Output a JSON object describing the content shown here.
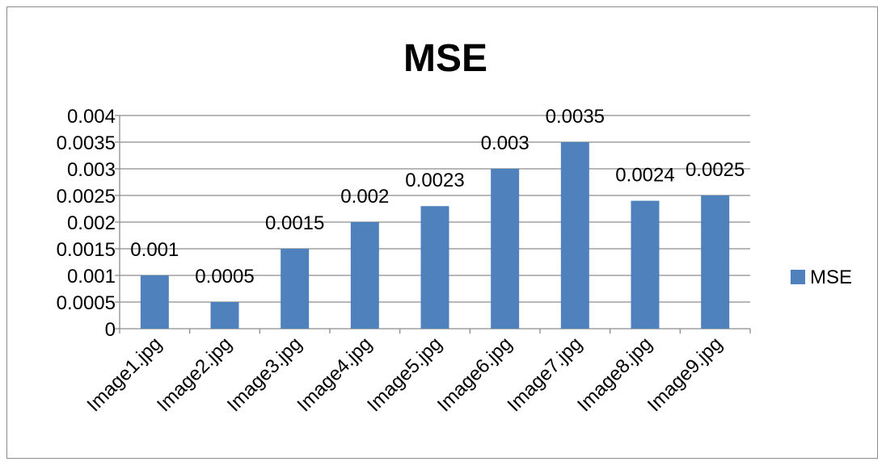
{
  "chart_data": {
    "type": "bar",
    "title": "MSE",
    "xlabel": "",
    "ylabel": "",
    "categories": [
      "Image1.jpg",
      "Image2.jpg",
      "Image3.jpg",
      "Image4.jpg",
      "Image5.jpg",
      "Image6.jpg",
      "Image7.jpg",
      "Image8.jpg",
      "Image9.jpg"
    ],
    "series": [
      {
        "name": "MSE",
        "values": [
          0.001,
          0.0005,
          0.0015,
          0.002,
          0.0023,
          0.003,
          0.0035,
          0.0024,
          0.0025
        ],
        "data_labels": [
          "0.001",
          "0.0005",
          "0.0015",
          "0.002",
          "0.0023",
          "0.003",
          "0.0035",
          "0.0024",
          "0.0025"
        ],
        "color": "#4f81bd"
      }
    ],
    "ylim": [
      0,
      0.004
    ],
    "yticks": [
      0,
      0.0005,
      0.001,
      0.0015,
      0.002,
      0.0025,
      0.003,
      0.0035,
      0.004
    ],
    "ytick_labels": [
      "0",
      "0.0005",
      "0.001",
      "0.0015",
      "0.002",
      "0.0025",
      "0.003",
      "0.0035",
      "0.004"
    ],
    "grid": true,
    "legend_position": "right",
    "colors": {
      "bar": "#4f81bd",
      "grid": "#8c8c8c",
      "axis": "#8c8c8c",
      "frame": "#8c8c8c"
    }
  }
}
